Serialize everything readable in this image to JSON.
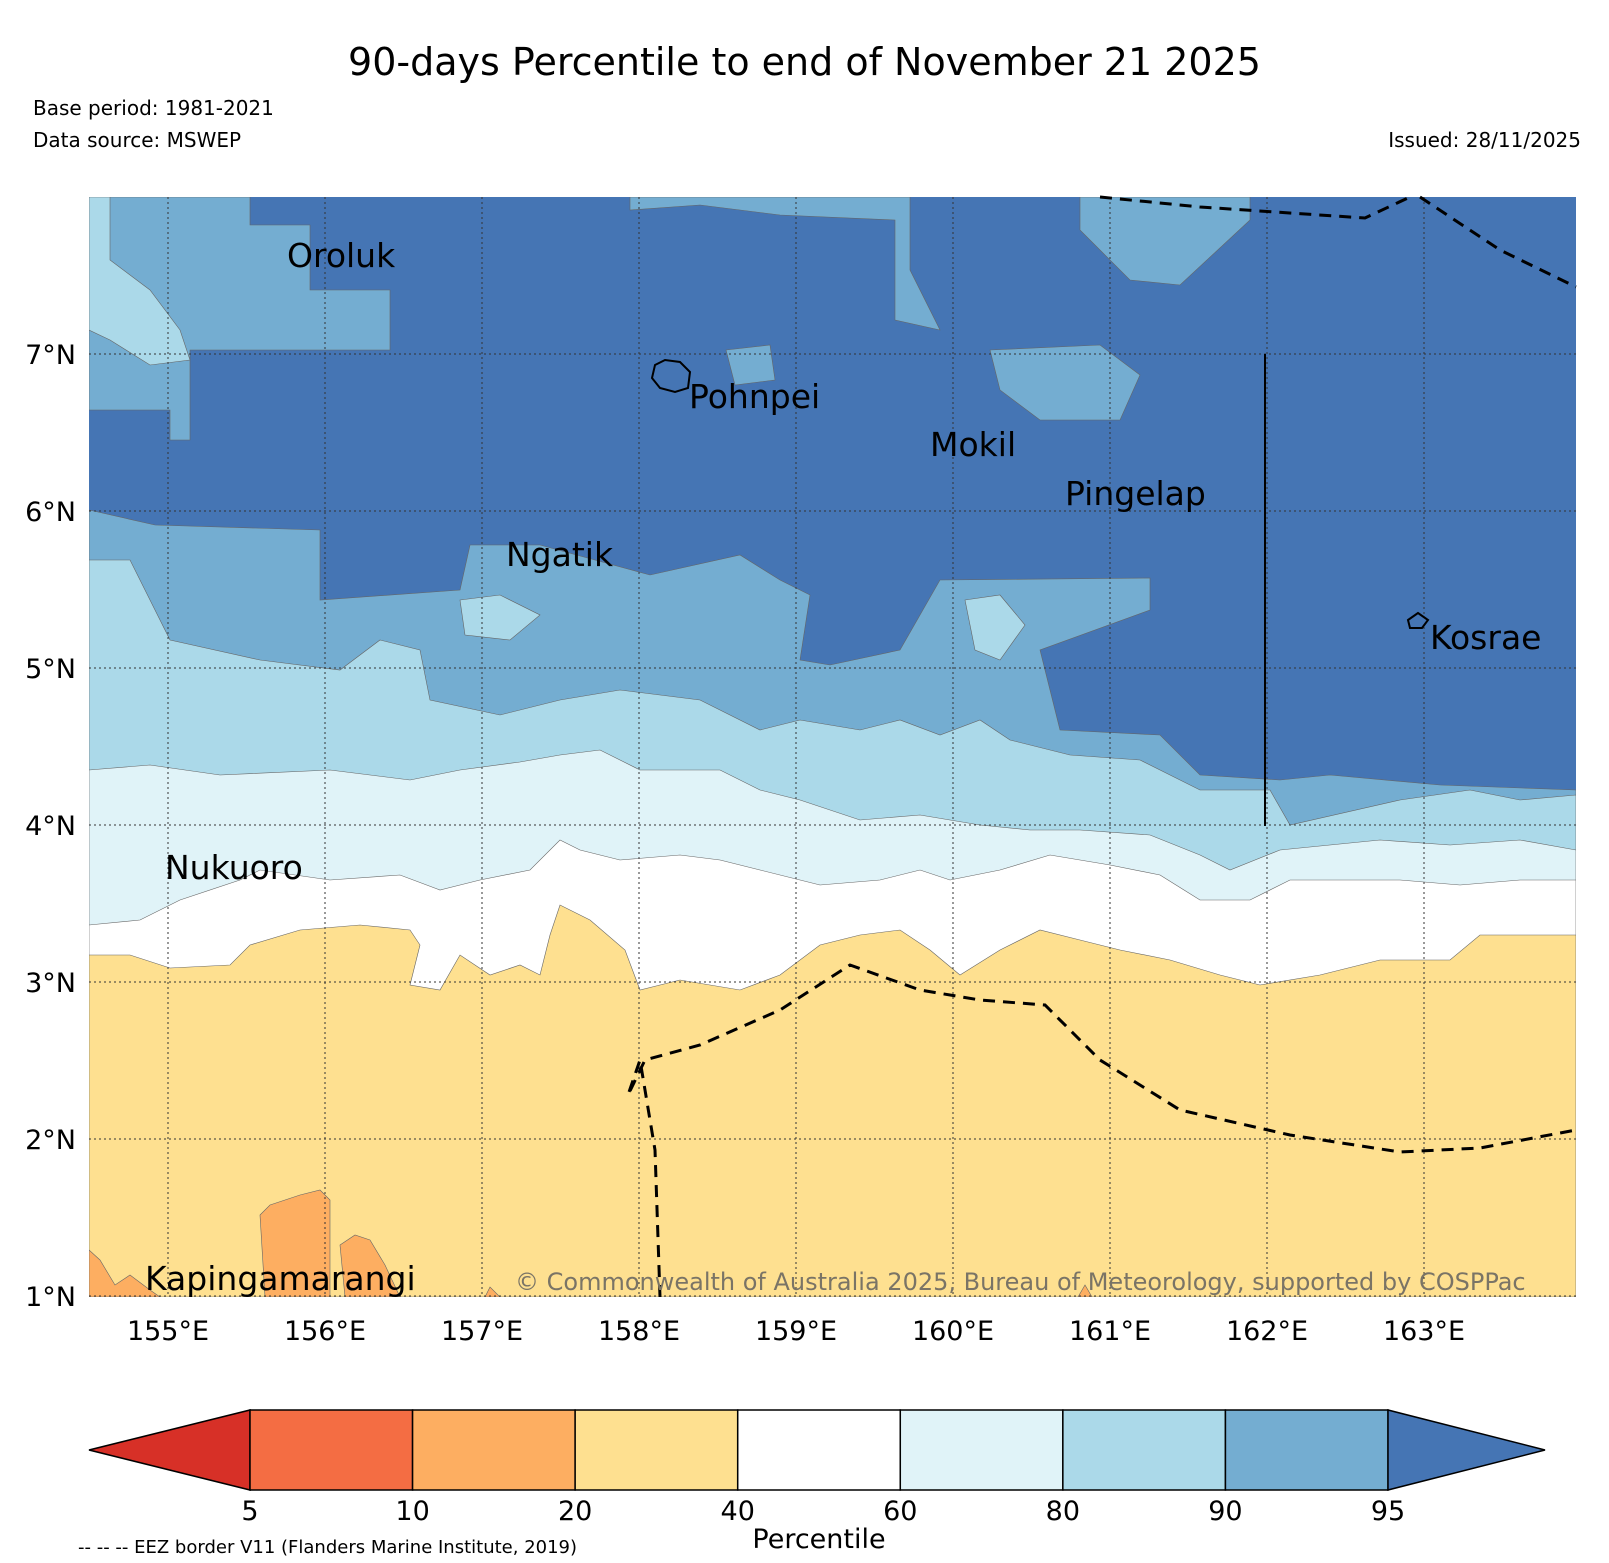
{
  "title": "90-days Percentile to end of November 21 2025",
  "base_period": "Base period: 1981-2021",
  "data_source": "Data source: MSWEP",
  "issued": "Issued: 28/11/2025",
  "copyright": "© Commonwealth of Australia 2025, Bureau of Meteorology, supported by COSPPac",
  "eez_note": "-- -- -- EEZ border V11 (Flanders Marine Institute, 2019)",
  "lat_ticks": [
    "7°N",
    "6°N",
    "5°N",
    "4°N",
    "3°N",
    "2°N",
    "1°N"
  ],
  "lon_ticks": [
    "155°E",
    "156°E",
    "157°E",
    "158°E",
    "159°E",
    "160°E",
    "161°E",
    "162°E",
    "163°E"
  ],
  "places": [
    "Oroluk",
    "Pohnpei",
    "Mokil",
    "Pingelap",
    "Ngatik",
    "Kosrae",
    "Nukuoro",
    "Kapingamarangi"
  ],
  "colorbar": {
    "label": "Percentile",
    "ticks": [
      "5",
      "10",
      "20",
      "40",
      "60",
      "80",
      "90",
      "95"
    ],
    "colors": [
      "#d73027",
      "#f46d43",
      "#fdae61",
      "#fee090",
      "#ffffff",
      "#e0f3f8",
      "#abd9e9",
      "#74add1",
      "#4575b4"
    ]
  },
  "colors": {
    "p95": "#4575b4",
    "p90": "#74add1",
    "p80": "#abd9e9",
    "p60": "#e0f3f8",
    "p40": "#ffffff",
    "p20": "#fee090",
    "p10": "#fdae61",
    "p5": "#f46d43"
  }
}
